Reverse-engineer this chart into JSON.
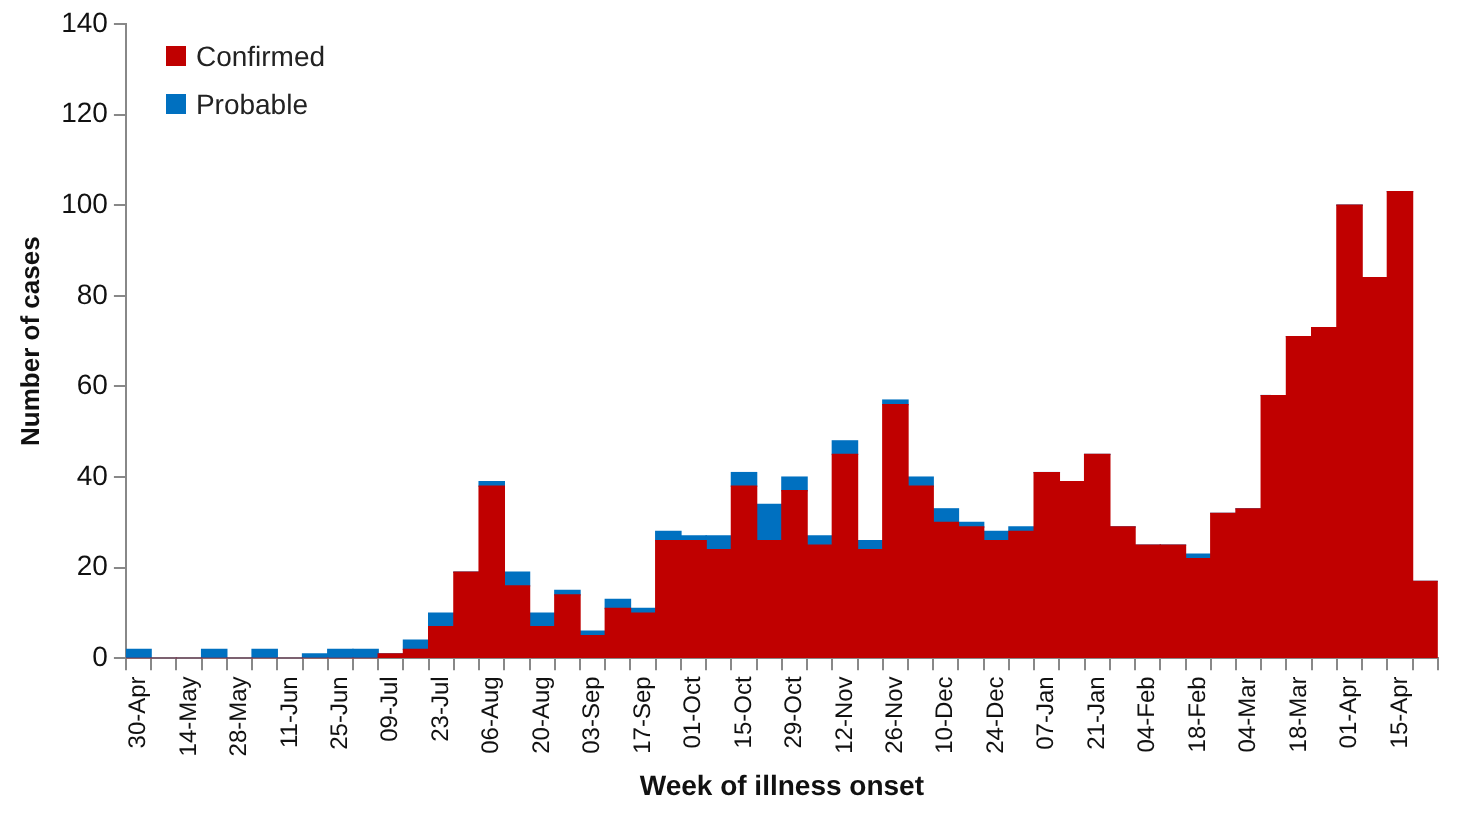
{
  "chart_data": {
    "type": "bar",
    "stacked": true,
    "xlabel": "Week of illness onset",
    "ylabel": "Number of cases",
    "categories": [
      "30-Apr",
      null,
      "14-May",
      null,
      "28-May",
      null,
      "11-Jun",
      null,
      "25-Jun",
      null,
      "09-Jul",
      null,
      "23-Jul",
      null,
      "06-Aug",
      null,
      "20-Aug",
      null,
      "03-Sep",
      null,
      "17-Sep",
      null,
      "01-Oct",
      null,
      "15-Oct",
      null,
      "29-Oct",
      null,
      "12-Nov",
      null,
      "26-Nov",
      null,
      "10-Dec",
      null,
      "24-Dec",
      null,
      "07-Jan",
      null,
      "21-Jan",
      null,
      "04-Feb",
      null,
      "18-Feb",
      null,
      "04-Mar",
      null,
      "18-Mar",
      null,
      "01-Apr",
      null,
      "15-Apr",
      null
    ],
    "series": [
      {
        "name": "Confirmed",
        "color": "#c00000",
        "values": [
          0,
          0,
          0,
          0,
          0,
          0,
          0,
          0,
          0,
          0,
          1,
          2,
          7,
          19,
          38,
          16,
          7,
          14,
          5,
          11,
          10,
          26,
          26,
          24,
          38,
          26,
          37,
          25,
          45,
          24,
          56,
          38,
          30,
          29,
          26,
          28,
          41,
          39,
          45,
          29,
          25,
          25,
          22,
          32,
          33,
          58,
          71,
          73,
          100,
          84,
          103,
          17
        ]
      },
      {
        "name": "Probable",
        "color": "#0070c0",
        "values": [
          2,
          0,
          0,
          2,
          0,
          2,
          0,
          1,
          2,
          2,
          0,
          2,
          3,
          0,
          1,
          3,
          3,
          1,
          1,
          2,
          1,
          2,
          1,
          3,
          3,
          8,
          3,
          2,
          3,
          2,
          1,
          2,
          3,
          1,
          2,
          1,
          0,
          0,
          0,
          0,
          0,
          0,
          1,
          0,
          0,
          0,
          0,
          0,
          0,
          0,
          0,
          0
        ]
      }
    ],
    "ylim": [
      0,
      140
    ],
    "yticks": [
      0,
      20,
      40,
      60,
      80,
      100,
      120,
      140
    ],
    "grid": false,
    "legend": "top left"
  }
}
